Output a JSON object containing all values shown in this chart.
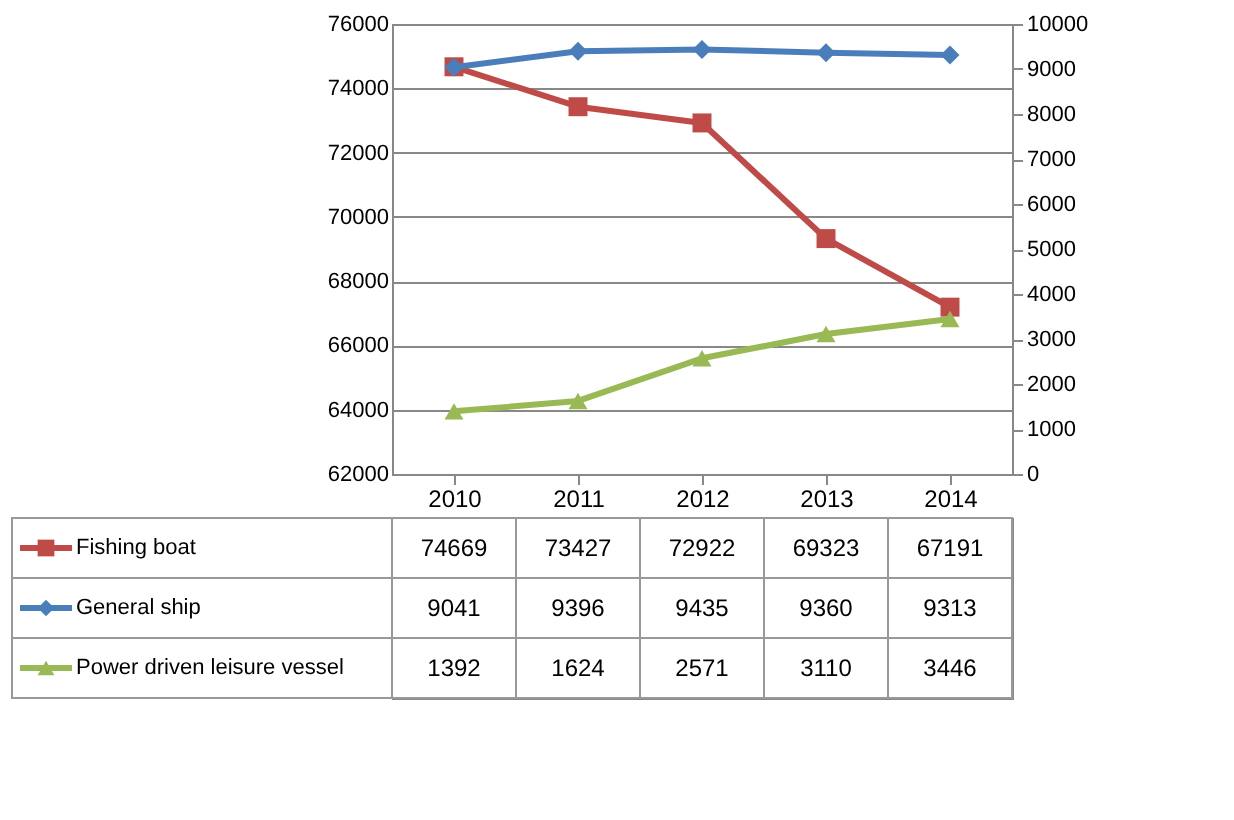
{
  "chart_data": {
    "type": "line",
    "categories": [
      "2010",
      "2011",
      "2012",
      "2013",
      "2014"
    ],
    "series": [
      {
        "name": "Fishing boat",
        "color": "#be4b48",
        "marker": "square",
        "values": [
          74669,
          73427,
          72922,
          69323,
          67191
        ]
      },
      {
        "name": "General ship",
        "color": "#4a7ebb",
        "marker": "diamond",
        "axis": "y2",
        "values": [
          9041,
          9396,
          9435,
          9360,
          9313
        ]
      },
      {
        "name": "Power driven leisure vessel",
        "color": "#98b954",
        "marker": "triangle",
        "axis": "y2",
        "values": [
          1392,
          1624,
          2571,
          3110,
          3446
        ]
      }
    ],
    "ylim": [
      62000,
      76000
    ],
    "yticks": [
      62000,
      64000,
      66000,
      68000,
      70000,
      72000,
      74000,
      76000
    ],
    "y2lim": [
      0,
      10000
    ],
    "y2ticks": [
      0,
      1000,
      2000,
      3000,
      4000,
      5000,
      6000,
      7000,
      8000,
      9000,
      10000
    ],
    "grid": "y",
    "legend": "bottom",
    "data_labels": true
  }
}
